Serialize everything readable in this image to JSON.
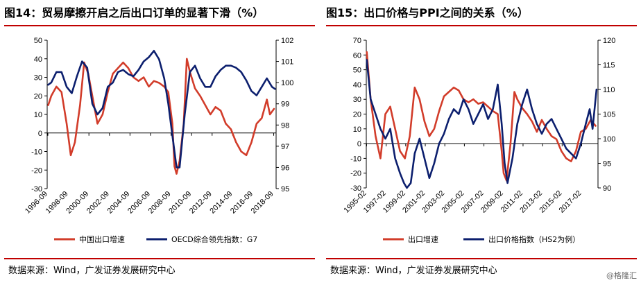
{
  "left": {
    "title": "图14：贸易摩擦开启之后出口订单的显著下滑（%）",
    "source": "数据来源：Wind，广发证券发展研究中心"
  },
  "right": {
    "title": "图15：出口价格与PPI之间的关系（%）",
    "source": "数据来源：Wind，广发证券发展研究中心"
  },
  "watermark": "@格隆汇",
  "colors": {
    "red": "#d23c2a",
    "navy": "#0c1f6e",
    "rule": "#c00000"
  },
  "chart_data": [
    {
      "type": "line",
      "title": "图14：贸易摩擦开启之后出口订单的显著下滑（%）",
      "x_tick_labels": [
        "1996-09",
        "1998-09",
        "2000-09",
        "2002-09",
        "2004-09",
        "2006-09",
        "2008-09",
        "2010-09",
        "2012-09",
        "2014-09",
        "2016-09",
        "2018-09"
      ],
      "y_left": {
        "lim": [
          -30,
          50
        ],
        "ticks": [
          -30,
          -20,
          -10,
          0,
          10,
          20,
          30,
          40,
          50
        ]
      },
      "y_right": {
        "lim": [
          95,
          102
        ],
        "ticks": [
          95,
          96,
          97,
          98,
          99,
          100,
          101,
          102
        ]
      },
      "grid": false,
      "legend_position": "bottom",
      "series": [
        {
          "name": "中国出口增速",
          "axis": "left",
          "color": "#d23c2a",
          "x": [
            1996.7,
            1997.0,
            1997.5,
            1998.0,
            1998.5,
            1998.9,
            1999.3,
            1999.8,
            2000.2,
            2000.6,
            2001.0,
            2001.5,
            2002.0,
            2002.5,
            2003.0,
            2003.5,
            2004.0,
            2004.5,
            2005.0,
            2005.5,
            2006.0,
            2006.5,
            2007.0,
            2007.5,
            2008.0,
            2008.4,
            2008.8,
            2009.0,
            2009.2,
            2009.5,
            2009.9,
            2010.2,
            2010.5,
            2011.0,
            2011.5,
            2012.0,
            2012.5,
            2013.0,
            2013.5,
            2014.0,
            2014.5,
            2015.0,
            2015.5,
            2016.0,
            2016.5,
            2017.0,
            2017.5,
            2018.0,
            2018.3,
            2018.7
          ],
          "values": [
            15,
            20,
            25,
            22,
            5,
            -12,
            -5,
            15,
            38,
            32,
            20,
            5,
            10,
            22,
            32,
            35,
            38,
            35,
            30,
            28,
            30,
            25,
            28,
            27,
            25,
            22,
            5,
            -18,
            -22,
            -15,
            5,
            40,
            33,
            24,
            20,
            15,
            10,
            14,
            12,
            5,
            2,
            -5,
            -10,
            -12,
            -5,
            5,
            8,
            18,
            10,
            13
          ]
        },
        {
          "name": "OECD综合领先指数：G7",
          "axis": "right",
          "color": "#0c1f6e",
          "x": [
            1996.7,
            1997.0,
            1997.5,
            1998.0,
            1998.5,
            1999.0,
            1999.5,
            2000.0,
            2000.5,
            2001.0,
            2001.5,
            2002.0,
            2002.5,
            2003.0,
            2003.5,
            2004.0,
            2004.5,
            2005.0,
            2005.5,
            2006.0,
            2006.5,
            2007.0,
            2007.5,
            2008.0,
            2008.4,
            2008.8,
            2009.2,
            2009.5,
            2010.0,
            2010.5,
            2011.0,
            2011.5,
            2012.0,
            2012.5,
            2013.0,
            2013.5,
            2014.0,
            2014.5,
            2015.0,
            2015.5,
            2016.0,
            2016.5,
            2017.0,
            2017.5,
            2018.0,
            2018.5,
            2018.8
          ],
          "values": [
            99.9,
            100.0,
            100.5,
            100.5,
            99.8,
            99.5,
            100.3,
            101.0,
            100.7,
            99.0,
            98.5,
            98.8,
            99.8,
            100.0,
            100.5,
            100.6,
            100.4,
            100.3,
            100.6,
            101.0,
            101.2,
            101.5,
            101.1,
            100.2,
            99.0,
            97.5,
            96.0,
            96.0,
            98.5,
            100.5,
            100.8,
            100.2,
            99.8,
            99.8,
            100.3,
            100.6,
            100.8,
            100.8,
            100.7,
            100.5,
            100.1,
            99.6,
            99.4,
            99.8,
            100.2,
            99.8,
            99.7
          ]
        }
      ]
    },
    {
      "type": "line",
      "title": "图15：出口价格与PPI之间的关系（%）",
      "x_tick_labels": [
        "1995-02",
        "1997-02",
        "1999-02",
        "2001-02",
        "2003-02",
        "2005-02",
        "2007-02",
        "2009-02",
        "2011-02",
        "2013-02",
        "2015-02",
        "2017-02"
      ],
      "y_left": {
        "lim": [
          -30,
          70
        ],
        "ticks": [
          -30,
          -20,
          -10,
          0,
          10,
          20,
          30,
          40,
          50,
          60,
          70
        ]
      },
      "y_right": {
        "lim": [
          90,
          120
        ],
        "ticks": [
          90,
          95,
          100,
          105,
          110,
          115,
          120
        ]
      },
      "grid": false,
      "legend_position": "bottom",
      "series": [
        {
          "name": "出口增速",
          "axis": "left",
          "color": "#d23c2a",
          "x": [
            1995.1,
            1995.5,
            1996.0,
            1996.5,
            1997.0,
            1997.5,
            1998.0,
            1998.5,
            1999.0,
            1999.5,
            2000.0,
            2000.5,
            2001.0,
            2001.5,
            2002.0,
            2002.5,
            2003.0,
            2003.5,
            2004.0,
            2004.5,
            2005.0,
            2005.5,
            2006.0,
            2006.5,
            2007.0,
            2007.5,
            2008.0,
            2008.5,
            2008.9,
            2009.1,
            2009.4,
            2009.8,
            2010.2,
            2010.5,
            2011.0,
            2011.5,
            2012.0,
            2012.5,
            2013.0,
            2013.5,
            2014.0,
            2014.5,
            2015.0,
            2015.5,
            2016.0,
            2016.5,
            2017.0,
            2017.5,
            2018.0,
            2018.5
          ],
          "values": [
            62,
            30,
            5,
            -10,
            20,
            25,
            10,
            -5,
            -10,
            5,
            38,
            30,
            15,
            5,
            10,
            22,
            32,
            35,
            38,
            36,
            30,
            28,
            30,
            27,
            28,
            25,
            22,
            20,
            -5,
            -20,
            -25,
            0,
            35,
            30,
            24,
            20,
            15,
            8,
            16,
            10,
            5,
            3,
            -5,
            -10,
            -12,
            -5,
            8,
            10,
            16,
            12
          ]
        },
        {
          "name": "出口价格指数（HS2为例）",
          "axis": "right",
          "color": "#0c1f6e",
          "x": [
            1995.1,
            1995.5,
            1996.0,
            1996.5,
            1997.0,
            1997.5,
            1998.0,
            1998.5,
            1998.9,
            1999.2,
            1999.6,
            2000.0,
            2000.5,
            2001.0,
            2001.5,
            2002.0,
            2002.5,
            2003.0,
            2003.5,
            2004.0,
            2004.5,
            2005.0,
            2005.5,
            2006.0,
            2006.5,
            2007.0,
            2007.5,
            2008.0,
            2008.5,
            2008.9,
            2009.2,
            2009.5,
            2010.0,
            2010.5,
            2011.0,
            2011.5,
            2012.0,
            2012.5,
            2013.0,
            2013.5,
            2014.0,
            2014.5,
            2015.0,
            2015.5,
            2016.0,
            2016.5,
            2017.0,
            2017.5,
            2017.9,
            2018.2,
            2018.6
          ],
          "values": [
            116,
            108,
            105,
            102,
            100,
            102,
            96,
            93,
            91,
            90,
            91,
            97,
            100,
            96,
            92,
            95,
            99,
            101,
            104,
            106,
            105,
            108,
            106,
            103,
            105,
            107,
            104,
            106,
            111,
            103,
            95,
            91,
            96,
            103,
            107,
            110,
            106,
            103,
            101,
            103,
            104,
            102,
            100,
            98,
            97,
            96,
            99,
            103,
            106,
            102,
            110
          ]
        }
      ]
    }
  ]
}
